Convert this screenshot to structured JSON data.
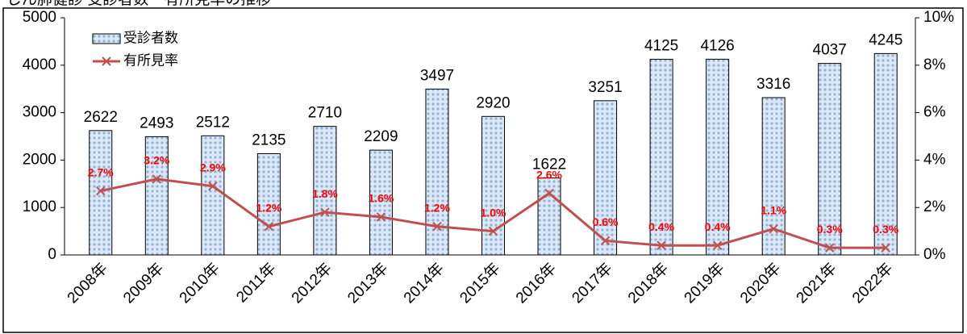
{
  "chart_data": {
    "type": "bar_line",
    "title": "じん肺健診 受診者数・有所見率の推移",
    "categories": [
      "2008年",
      "2009年",
      "2010年",
      "2011年",
      "2012年",
      "2013年",
      "2014年",
      "2015年",
      "2016年",
      "2017年",
      "2018年",
      "2019年",
      "2020年",
      "2021年",
      "2022年"
    ],
    "series": [
      {
        "name": "受診者数",
        "type": "bar",
        "color": "#c6d9f1",
        "values": [
          2622,
          2493,
          2512,
          2135,
          2710,
          2209,
          3497,
          2920,
          1622,
          3251,
          4125,
          4126,
          3316,
          4037,
          4245
        ]
      },
      {
        "name": "有所見率",
        "type": "line",
        "axis": "y2",
        "color": "#c0504d",
        "values": [
          2.7,
          3.2,
          2.9,
          1.2,
          1.8,
          1.6,
          1.2,
          1.0,
          2.6,
          0.6,
          0.4,
          0.4,
          1.1,
          0.3,
          0.3
        ],
        "value_labels": [
          "2.7%",
          "3.2%",
          "2.9%",
          "1.2%",
          "1.8%",
          "1.6%",
          "1.2%",
          "1.0%",
          "2.6%",
          "0.6%",
          "0.4%",
          "0.4%",
          "1.1%",
          "0.3%",
          "0.3%"
        ]
      }
    ],
    "ylim": [
      0,
      5000
    ],
    "yticks": [
      0,
      1000,
      2000,
      3000,
      4000,
      5000
    ],
    "y2lim": [
      0,
      10
    ],
    "y2ticks": [
      {
        "value": 0,
        "label": "0%"
      },
      {
        "value": 2,
        "label": "2%"
      },
      {
        "value": 4,
        "label": "4%"
      },
      {
        "value": 6,
        "label": "6%"
      },
      {
        "value": 8,
        "label": "8%"
      },
      {
        "value": 10,
        "label": "10%"
      }
    ],
    "legend": "upper left"
  }
}
